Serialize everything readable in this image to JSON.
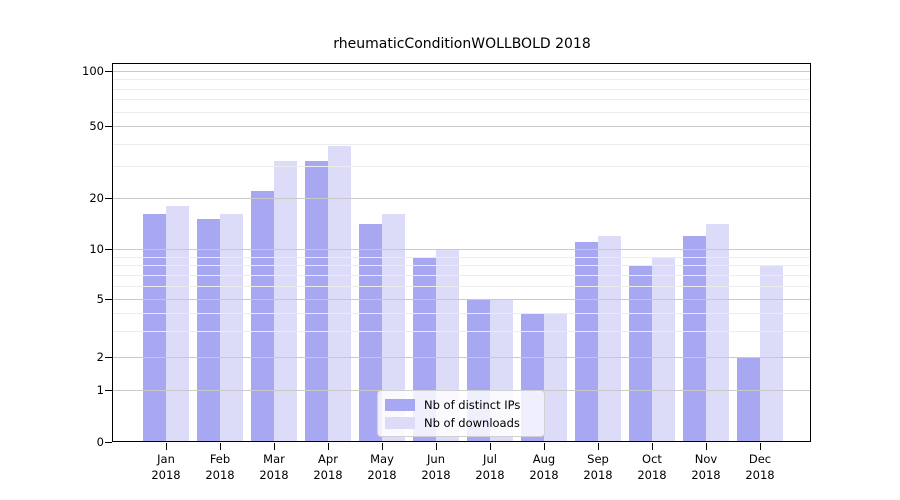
{
  "chart_data": {
    "type": "bar",
    "title": "rheumaticConditionWOLLBOLD 2018",
    "categories": [
      "Jan",
      "Feb",
      "Mar",
      "Apr",
      "May",
      "Jun",
      "Jul",
      "Aug",
      "Sep",
      "Oct",
      "Nov",
      "Dec"
    ],
    "xtick_second_line": "2018",
    "series": [
      {
        "name": "Nb of distinct IPs",
        "color": "#a7a7f2",
        "values": [
          16,
          15,
          22,
          32,
          14,
          9,
          5,
          4,
          11,
          8,
          12,
          2
        ]
      },
      {
        "name": "Nb of downloads",
        "color": "#dcdcf8",
        "values": [
          18,
          16,
          32,
          39,
          16,
          10,
          5,
          4,
          12,
          9,
          14,
          8
        ]
      }
    ],
    "yticks": [
      0,
      1,
      2,
      5,
      10,
      20,
      50,
      100
    ],
    "minor_gridlines": [
      3,
      4,
      6,
      7,
      8,
      9,
      30,
      40,
      60,
      70,
      80,
      90
    ],
    "scale": "log-like",
    "ylim": [
      0,
      100
    ],
    "grid": true,
    "legend_position": "lower center",
    "colors": {
      "axis": "#000000",
      "major_grid": "#c9c9c9",
      "minor_grid": "#ececec",
      "legend_border": "#d0d0d0"
    }
  }
}
